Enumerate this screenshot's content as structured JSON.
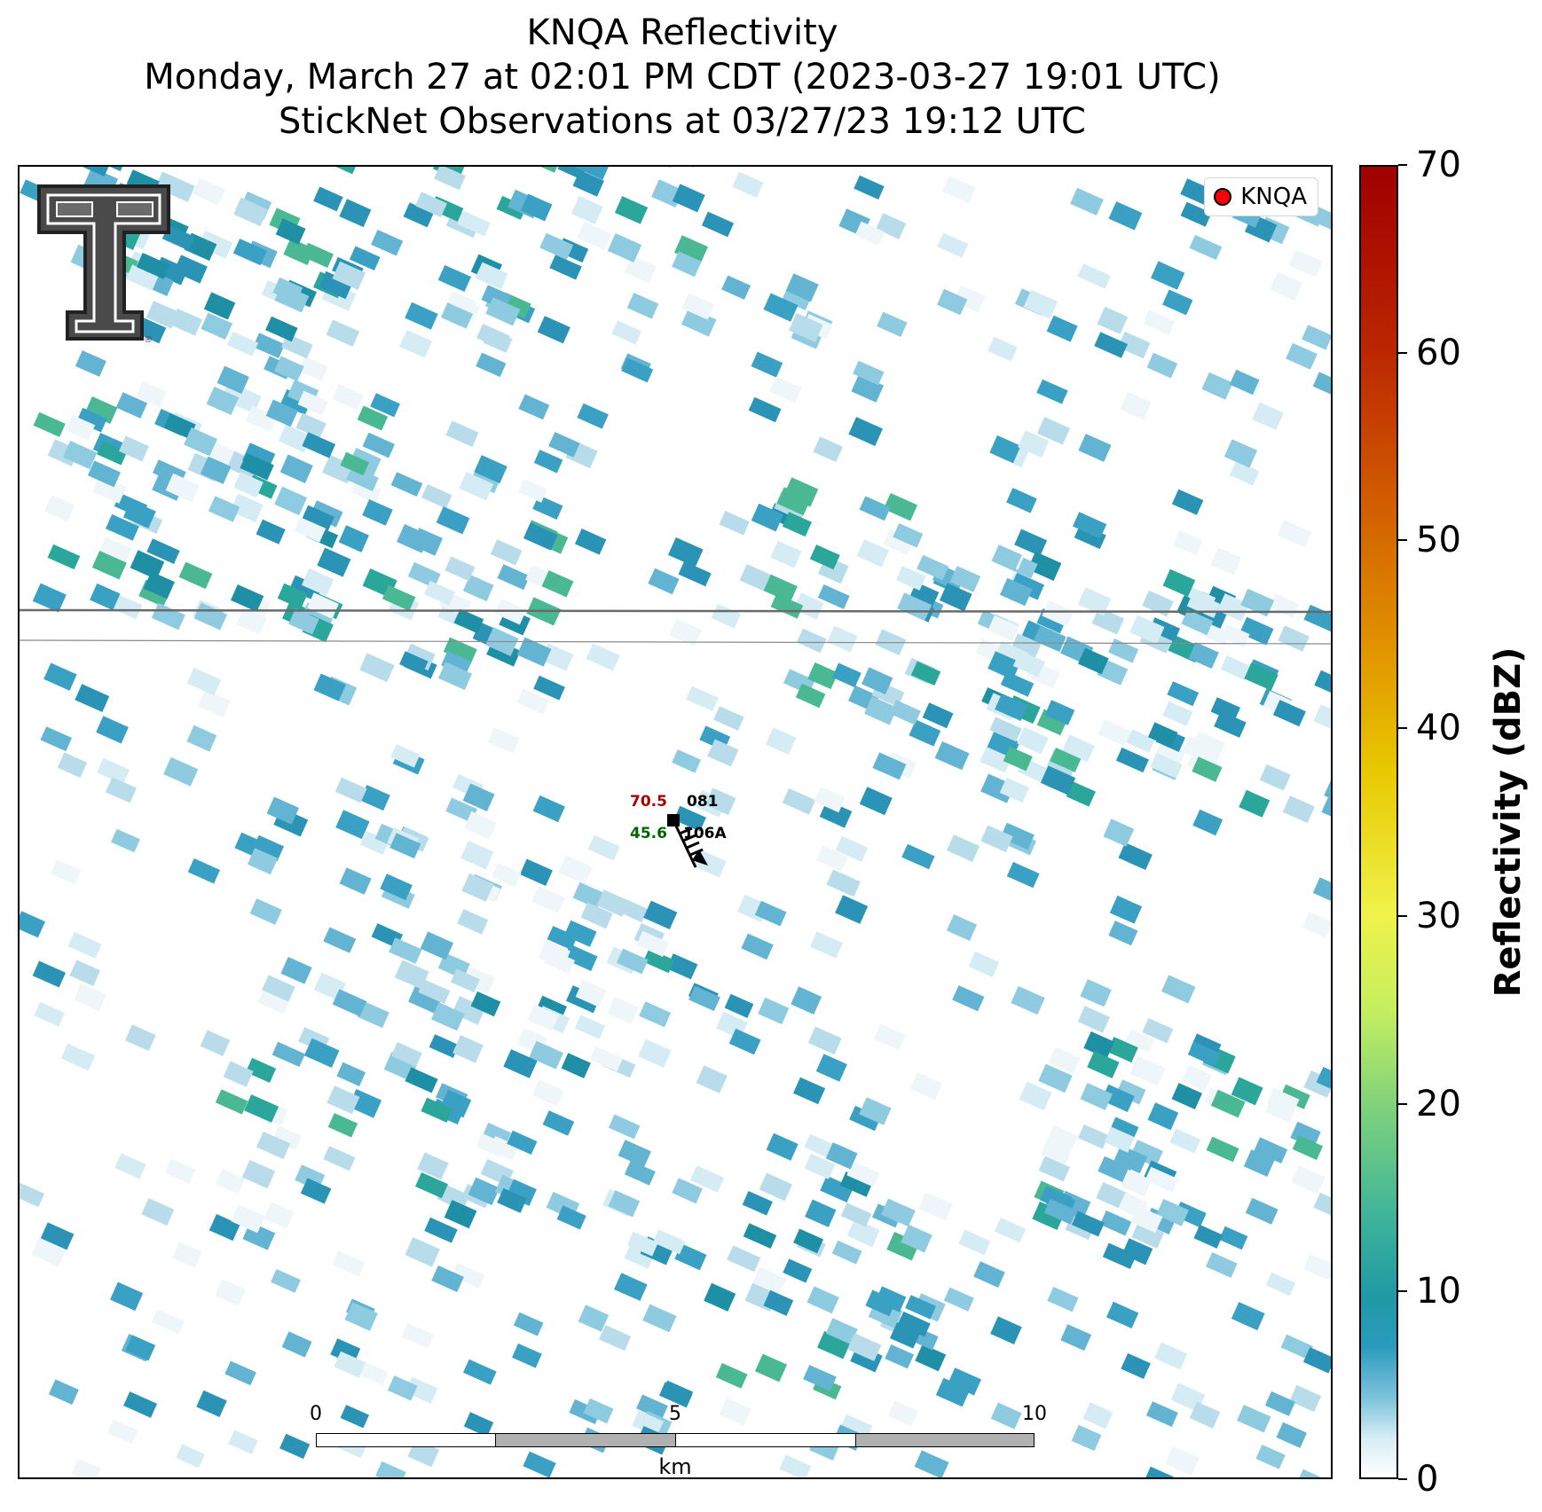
{
  "title": {
    "line1": "KNQA Reflectivity",
    "line2": "Monday, March 27 at 02:01 PM CDT (2023-03-27 19:01 UTC)",
    "line3": "StickNet Observations at 03/27/23 19:12 UTC"
  },
  "legend": {
    "marker_color": "#ff0000",
    "label": "KNQA"
  },
  "colorbar": {
    "label": "Reflectivity (dBZ)",
    "min": 0,
    "max": 70,
    "ticks": [
      "0",
      "10",
      "20",
      "30",
      "40",
      "50",
      "60",
      "70"
    ]
  },
  "scalebar": {
    "ticks": [
      "0",
      "5",
      "10"
    ],
    "unit": "km"
  },
  "station": {
    "id": "081",
    "name": "106A",
    "temperature": "70.5",
    "dewpoint": "45.6",
    "temperature_color": "#aa0000",
    "dewpoint_color": "#006400"
  },
  "logo": {
    "name": "texas-tech-double-t-logo"
  }
}
